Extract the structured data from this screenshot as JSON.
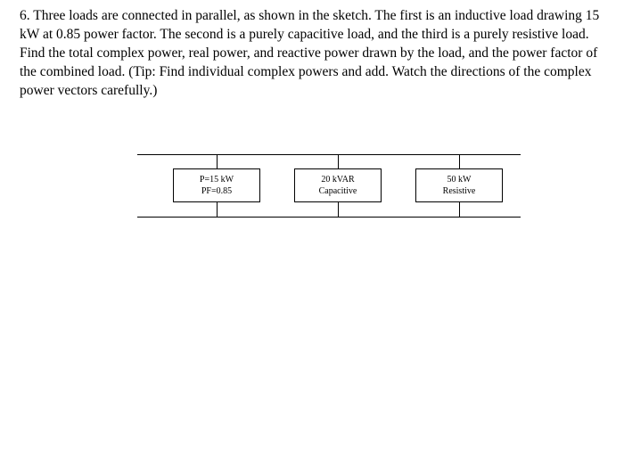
{
  "problem": {
    "number": "6.",
    "text": "Three loads are connected in parallel, as shown in the sketch. The first is an inductive load drawing 15 kW at 0.85 power factor. The second is a purely capacitive load, and the third is a purely resistive load. Find the total complex power, real power, and reactive power drawn by the load, and the power factor of the combined load. (Tip: Find individual complex powers and add. Watch the directions of the complex power vectors carefully.)"
  },
  "diagram": {
    "type": "circuit",
    "rail_color": "#000000",
    "box_border_color": "#000000",
    "background_color": "#ffffff",
    "label_fontsize": 10,
    "loads": [
      {
        "line1": "P=15 kW",
        "line2": "PF=0.85"
      },
      {
        "line1": "20 kVAR",
        "line2": "Capacitive"
      },
      {
        "line1": "50 kW",
        "line2": "Resistive"
      }
    ]
  }
}
